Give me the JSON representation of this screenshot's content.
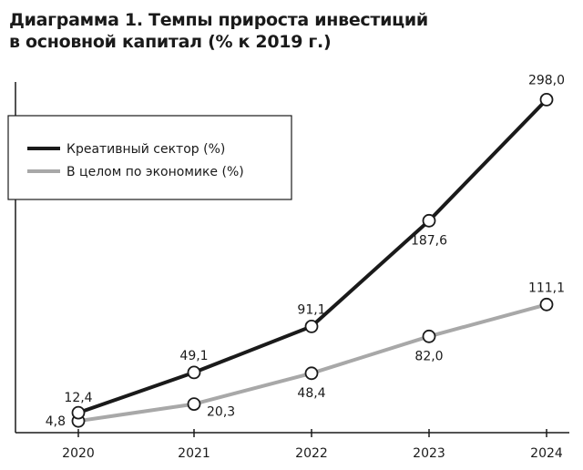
{
  "header": {
    "title_line1": "Диаграмма 1. Темпы прироста инвестиций",
    "title_line2": "в основной капитал (% к 2019 г.)"
  },
  "colors": {
    "series1": "#1a1a1a",
    "series2": "#a8a8a8",
    "axis": "#1a1a1a"
  },
  "chart_data": {
    "type": "line",
    "title": "Диаграмма 1. Темпы прироста инвестиций в основной капитал (% к 2019 г.)",
    "xlabel": "",
    "ylabel": "",
    "categories": [
      "2020",
      "2021",
      "2022",
      "2023",
      "2024"
    ],
    "ylim": [
      0,
      310
    ],
    "grid": false,
    "legend_position": "top-left",
    "series": [
      {
        "name": "Креативный сектор (%)",
        "values": [
          12.4,
          49.1,
          91.1,
          187.6,
          298.0
        ],
        "labels": [
          "12,4",
          "49,1",
          "91,1",
          "187,6",
          "298,0"
        ],
        "label_pos": [
          "above",
          "above",
          "above",
          "below",
          "above"
        ]
      },
      {
        "name": "В целом по экономике (%)",
        "values": [
          4.8,
          20.3,
          48.4,
          82.0,
          111.1
        ],
        "labels": [
          "4,8",
          "20,3",
          "48,4",
          "82,0",
          "111,1"
        ],
        "label_pos": [
          "left",
          "right",
          "below",
          "below",
          "above"
        ]
      }
    ]
  }
}
